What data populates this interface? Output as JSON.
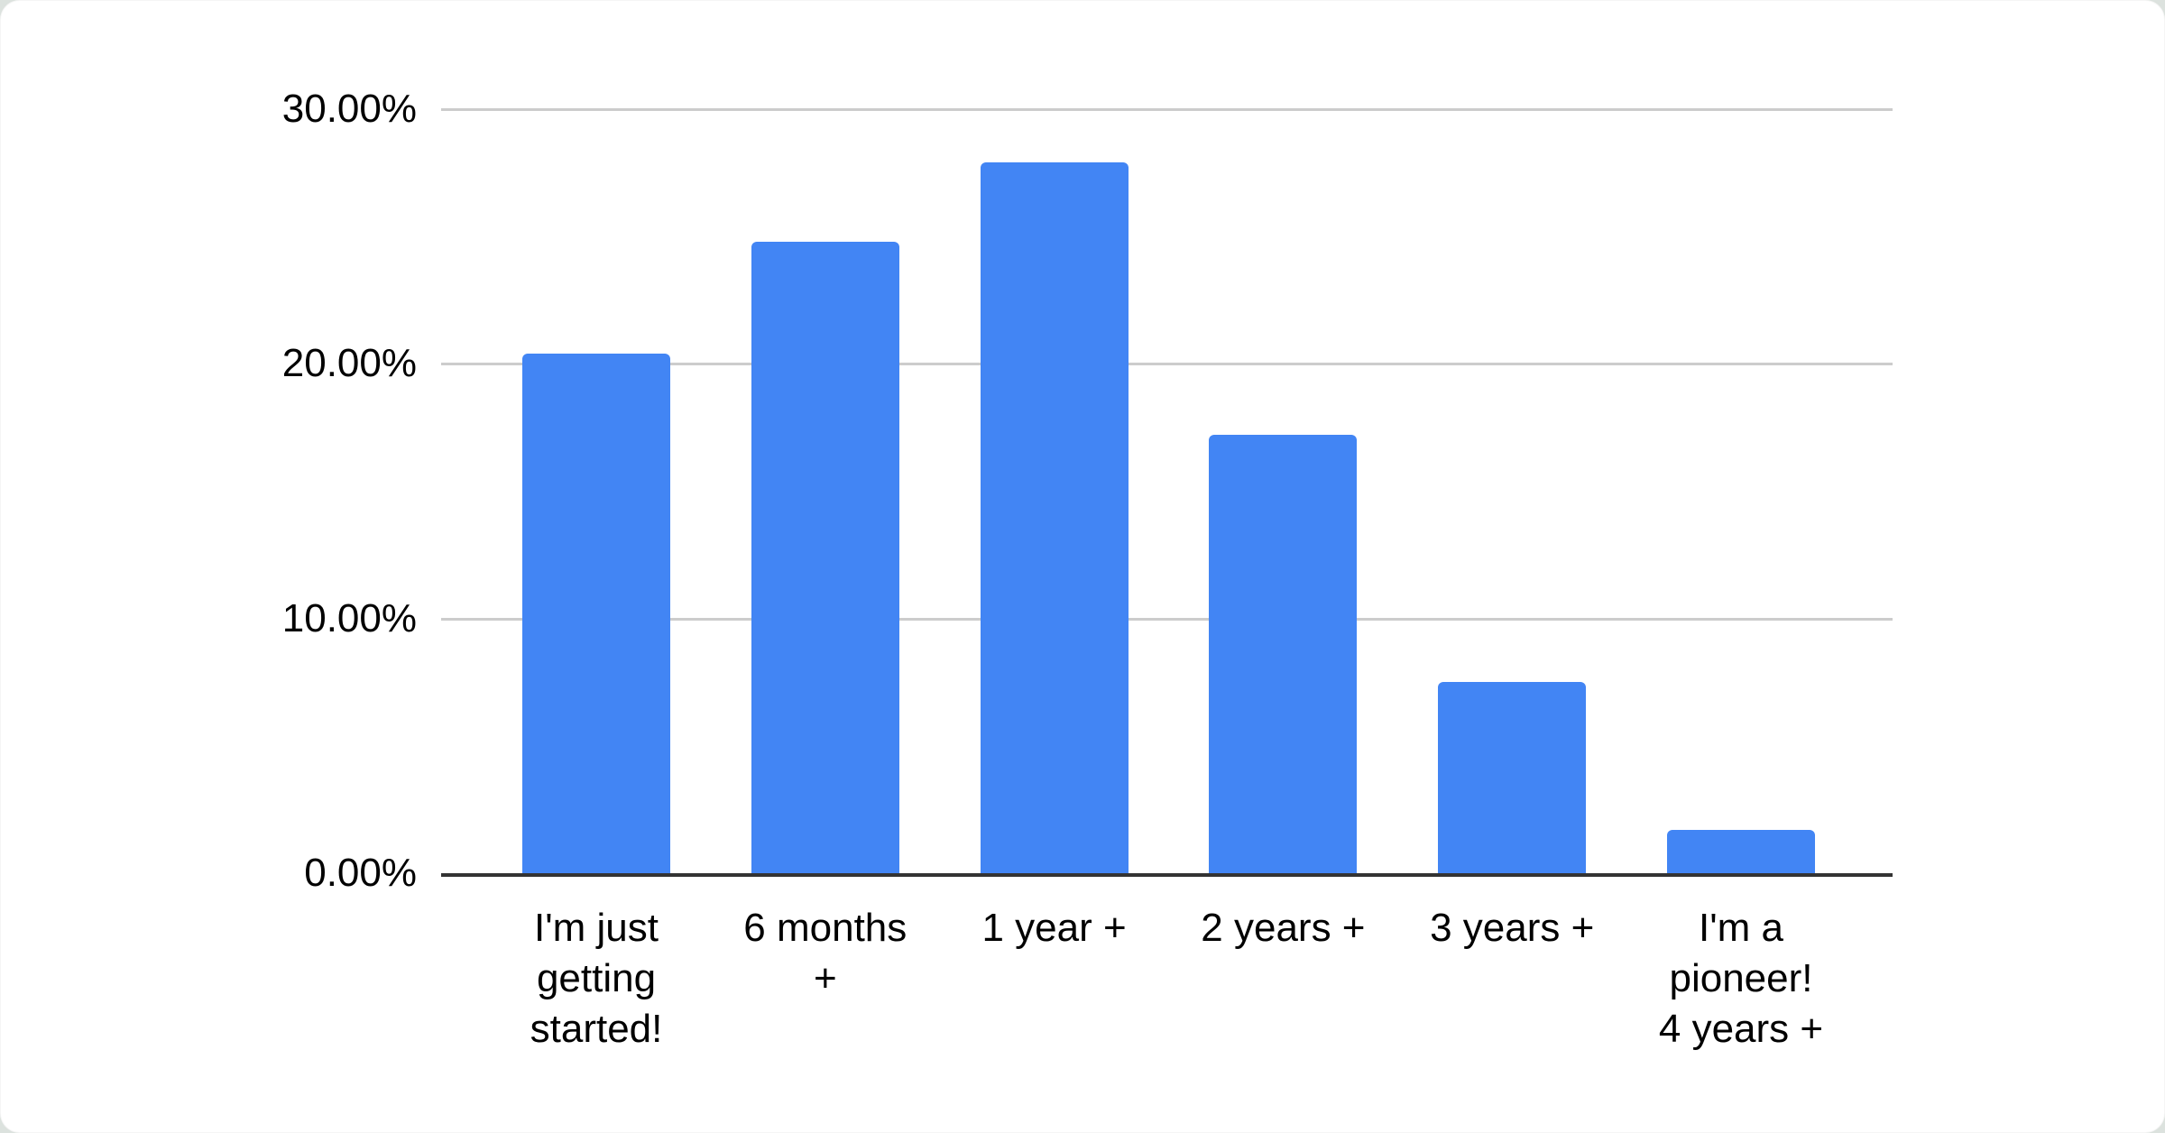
{
  "page": {
    "background_color": "#dce2de",
    "card_background": "#ffffff"
  },
  "chart_data": {
    "type": "bar",
    "title": "",
    "xlabel": "",
    "ylabel": "",
    "categories": [
      "I'm just getting started!",
      "6 months +",
      "1 year +",
      "2 years +",
      "3 years +",
      "I'm a pioneer! 4 years +"
    ],
    "category_label_lines": [
      [
        "I'm just",
        "getting",
        "started!"
      ],
      [
        "6 months",
        "+"
      ],
      [
        "1 year +"
      ],
      [
        "2 years +"
      ],
      [
        "3 years +"
      ],
      [
        "I'm a",
        "pioneer!",
        "4 years +"
      ]
    ],
    "values": [
      20.4,
      24.8,
      27.9,
      17.2,
      7.5,
      1.7
    ],
    "value_unit": "%",
    "ylim": [
      0,
      30
    ],
    "ytick_values": [
      0,
      10,
      20,
      30
    ],
    "ytick_labels": [
      "0.00%",
      "10.00%",
      "20.00%",
      "30.00%"
    ],
    "grid": true,
    "legend": "none",
    "bar_color": "#4285f4",
    "gridline_color": "#cccccc",
    "axis_line_color": "#333333",
    "tick_text_color": "#000000"
  }
}
